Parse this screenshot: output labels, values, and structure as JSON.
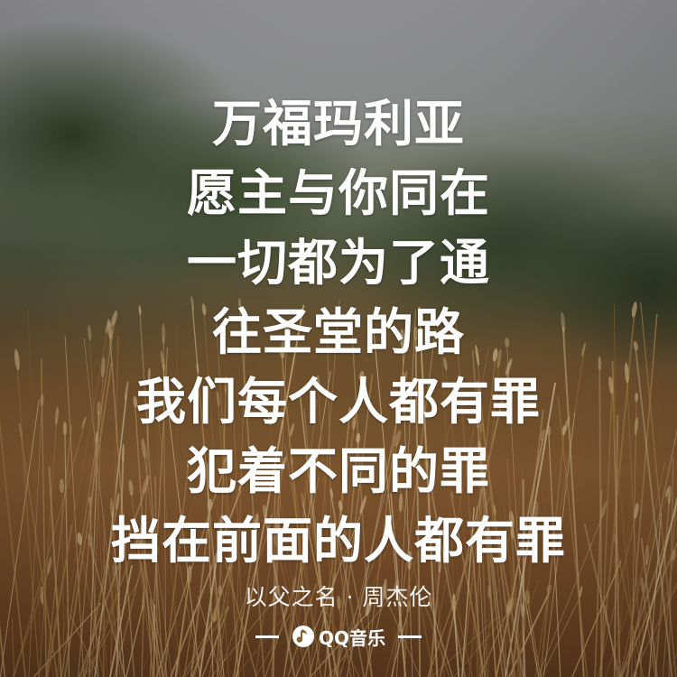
{
  "lyrics": [
    "万福玛利亚",
    "愿主与你同在",
    "一切都为了通",
    "往圣堂的路",
    "我们每个人都有罪",
    "犯着不同的罪",
    "挡在前面的人都有罪"
  ],
  "credit": "以父之名 · 周杰伦",
  "brand": {
    "name": "QQ音乐",
    "icon": "qq-music-logo-icon",
    "color": "#ffffff"
  },
  "background": {
    "description_colors": {
      "sky": "#b9b9bd",
      "foliage": "#4a5a38",
      "grass": "#9a6a3a"
    }
  }
}
